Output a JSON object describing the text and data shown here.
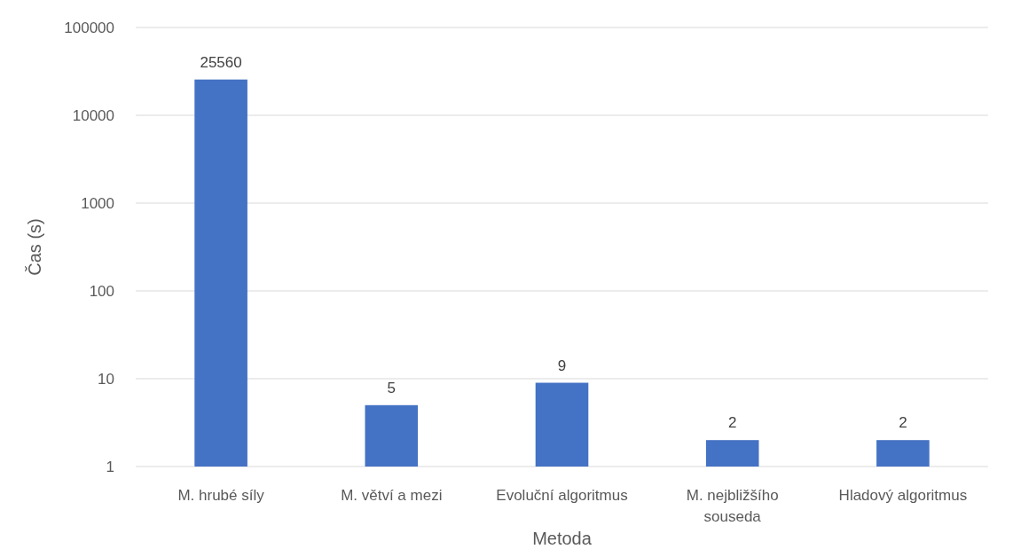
{
  "chart_data": {
    "type": "bar",
    "xlabel": "Metoda",
    "ylabel": "Čas (s)",
    "categories": [
      "M. hrubé síly",
      "M. větví a mezi",
      "Evoluční algoritmus",
      "M. nejbližšího souseda",
      "Hladový algoritmus"
    ],
    "values": [
      25560,
      5,
      9,
      2,
      2
    ],
    "color": "#4472c4",
    "log": true,
    "ylim": [
      1,
      100000
    ],
    "yticks": [
      1,
      10,
      100,
      1000,
      10000,
      100000
    ],
    "grid": "y",
    "data_labels": true
  }
}
